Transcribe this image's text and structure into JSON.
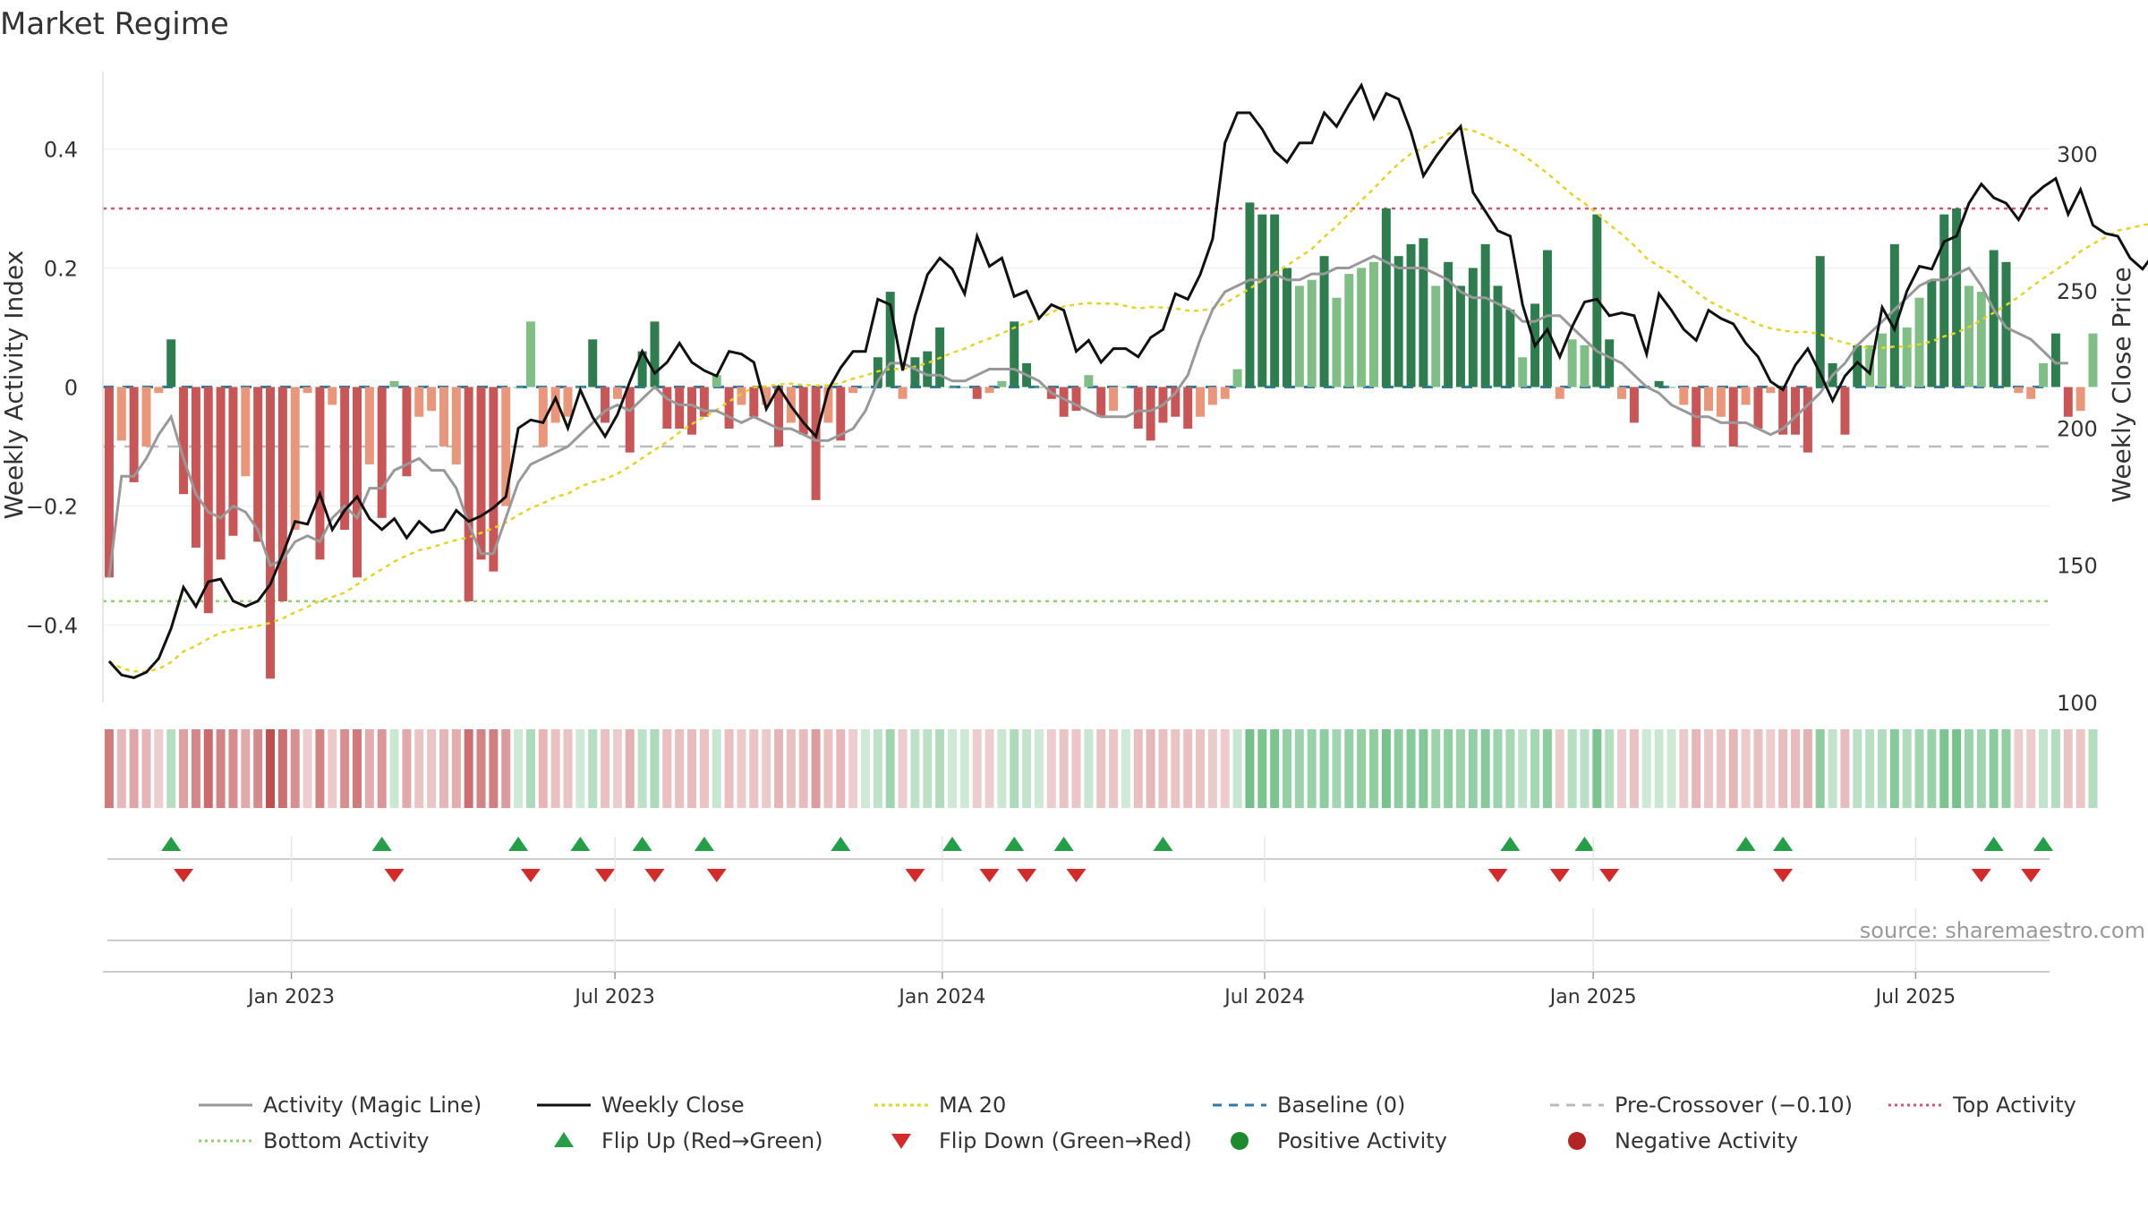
{
  "title": "Market Regime",
  "source_note": "source: sharemaestro.com",
  "colors": {
    "pos_strong": "#2e7d4f",
    "pos_weak": "#7fbf85",
    "neg_strong": "#c85656",
    "neg_weak": "#e9967a",
    "activity_line": "#999999",
    "close_line": "#111111",
    "ma_line": "#e6d41e",
    "baseline": "#2f7aa8",
    "precross": "#bbbbbb",
    "top": "#e0506e",
    "bottom": "#8fd16a",
    "flip_up": "#23a045",
    "flip_down": "#d42a2a",
    "pos_dot": "#1e8a2e",
    "neg_dot": "#b52424"
  },
  "chart_data": {
    "type": "bar",
    "title": "Market Regime",
    "y_left_label": "Weekly Activity Index",
    "y_right_label": "Weekly Close Price",
    "y_left_range": [
      -0.53,
      0.53
    ],
    "y_right_range": [
      100,
      330
    ],
    "y_left_ticks": [
      "0.4",
      "0.2",
      "0",
      "−0.2",
      "−0.4"
    ],
    "y_left_tick_values": [
      0.4,
      0.2,
      0,
      -0.2,
      -0.4
    ],
    "y_right_ticks": [
      "300",
      "250",
      "200",
      "150",
      "100"
    ],
    "y_right_tick_values": [
      300,
      250,
      200,
      150,
      100
    ],
    "x_tick_labels": [
      "Jan 2023",
      "Jul 2023",
      "Jan 2024",
      "Jul 2024",
      "Jan 2025",
      "Jul 2025"
    ],
    "x_tick_weeks": [
      14.7,
      40.8,
      67.2,
      93.2,
      119.7,
      145.7
    ],
    "weeks": 157,
    "levels": {
      "baseline": 0,
      "pre_crossover": -0.1,
      "top": 0.3,
      "bottom": -0.36
    },
    "activity": [
      -0.32,
      -0.09,
      -0.16,
      -0.1,
      -0.01,
      0.08,
      -0.18,
      -0.27,
      -0.38,
      -0.29,
      -0.25,
      -0.15,
      -0.26,
      -0.49,
      -0.36,
      -0.24,
      -0.01,
      -0.29,
      -0.03,
      -0.24,
      -0.32,
      -0.13,
      -0.22,
      0.01,
      -0.15,
      -0.05,
      -0.04,
      -0.1,
      -0.13,
      -0.36,
      -0.29,
      -0.31,
      -0.2,
      0.0,
      0.11,
      -0.1,
      -0.06,
      -0.05,
      0.0,
      0.08,
      -0.06,
      -0.02,
      -0.11,
      0.06,
      0.11,
      -0.07,
      -0.07,
      -0.08,
      -0.05,
      0.02,
      -0.07,
      -0.03,
      -0.05,
      -0.03,
      -0.1,
      -0.06,
      -0.08,
      -0.19,
      -0.06,
      -0.09,
      -0.01,
      0.0,
      0.05,
      0.16,
      -0.02,
      0.05,
      0.06,
      0.1,
      0.0,
      0.0,
      -0.02,
      -0.01,
      0.01,
      0.11,
      0.04,
      0.0,
      -0.02,
      -0.05,
      -0.04,
      0.02,
      -0.05,
      -0.04,
      0.0,
      -0.07,
      -0.09,
      -0.06,
      -0.05,
      -0.07,
      -0.05,
      -0.03,
      -0.02,
      0.03,
      0.31,
      0.29,
      0.29,
      0.2,
      0.17,
      0.18,
      0.22,
      0.15,
      0.19,
      0.2,
      0.21,
      0.3,
      0.22,
      0.24,
      0.25,
      0.17,
      0.21,
      0.17,
      0.2,
      0.24,
      0.17,
      0.13,
      0.05,
      0.14,
      0.23,
      -0.02,
      0.08,
      0.07,
      0.29,
      0.08,
      -0.02,
      -0.06,
      0.0,
      0.01,
      0.0,
      -0.03,
      -0.1,
      -0.04,
      -0.05,
      -0.1,
      -0.03,
      -0.07,
      -0.01,
      -0.08,
      -0.08,
      -0.11,
      0.22,
      0.04,
      -0.08,
      0.07,
      0.07,
      0.09,
      0.24,
      0.1,
      0.15,
      0.18,
      0.29,
      0.3,
      0.17,
      0.16,
      0.23,
      0.21,
      -0.01,
      -0.02,
      0.04,
      0.09,
      -0.05,
      -0.04,
      0.09
    ],
    "magic_line": [
      -0.32,
      -0.15,
      -0.15,
      -0.12,
      -0.08,
      -0.05,
      -0.12,
      -0.18,
      -0.21,
      -0.22,
      -0.2,
      -0.21,
      -0.24,
      -0.3,
      -0.29,
      -0.26,
      -0.25,
      -0.26,
      -0.22,
      -0.2,
      -0.22,
      -0.17,
      -0.17,
      -0.14,
      -0.13,
      -0.12,
      -0.14,
      -0.14,
      -0.17,
      -0.23,
      -0.28,
      -0.28,
      -0.22,
      -0.16,
      -0.13,
      -0.12,
      -0.11,
      -0.1,
      -0.08,
      -0.06,
      -0.04,
      -0.03,
      -0.04,
      -0.02,
      0.0,
      -0.02,
      -0.03,
      -0.03,
      -0.04,
      -0.04,
      -0.05,
      -0.06,
      -0.05,
      -0.06,
      -0.07,
      -0.07,
      -0.08,
      -0.09,
      -0.09,
      -0.08,
      -0.07,
      -0.04,
      0.01,
      0.04,
      0.04,
      0.03,
      0.02,
      0.02,
      0.01,
      0.01,
      0.02,
      0.03,
      0.03,
      0.03,
      0.02,
      0.01,
      -0.01,
      -0.02,
      -0.03,
      -0.04,
      -0.05,
      -0.05,
      -0.05,
      -0.04,
      -0.04,
      -0.03,
      -0.01,
      0.02,
      0.08,
      0.13,
      0.16,
      0.17,
      0.18,
      0.18,
      0.19,
      0.18,
      0.18,
      0.19,
      0.19,
      0.2,
      0.2,
      0.21,
      0.22,
      0.21,
      0.2,
      0.2,
      0.2,
      0.19,
      0.18,
      0.16,
      0.15,
      0.15,
      0.14,
      0.13,
      0.11,
      0.11,
      0.12,
      0.12,
      0.1,
      0.08,
      0.06,
      0.05,
      0.04,
      0.02,
      0.0,
      -0.01,
      -0.03,
      -0.04,
      -0.05,
      -0.05,
      -0.06,
      -0.06,
      -0.06,
      -0.07,
      -0.08,
      -0.07,
      -0.05,
      -0.03,
      -0.01,
      0.02,
      0.04,
      0.07,
      0.09,
      0.11,
      0.13,
      0.15,
      0.17,
      0.18,
      0.18,
      0.19,
      0.2,
      0.17,
      0.13,
      0.1,
      0.09,
      0.08,
      0.06,
      0.04,
      0.04
    ],
    "weekly_close": [
      115,
      110,
      109,
      111,
      116,
      127,
      142,
      135,
      144,
      145,
      137,
      135,
      137,
      143,
      154,
      166,
      165,
      176,
      163,
      170,
      175,
      167,
      163,
      167,
      160,
      166,
      162,
      163,
      170,
      166,
      168,
      171,
      175,
      200,
      203,
      202,
      211,
      200,
      214,
      204,
      197,
      205,
      217,
      228,
      220,
      224,
      231,
      224,
      221,
      219,
      228,
      227,
      224,
      207,
      215,
      208,
      202,
      197,
      214,
      222,
      228,
      228,
      247,
      245,
      221,
      241,
      256,
      262,
      258,
      249,
      270,
      259,
      262,
      248,
      250,
      240,
      245,
      243,
      228,
      232,
      224,
      229,
      229,
      226,
      233,
      236,
      249,
      247,
      256,
      269,
      304,
      315,
      315,
      309,
      301,
      297,
      304,
      304,
      315,
      310,
      318,
      325,
      313,
      322,
      320,
      308,
      292,
      299,
      305,
      310,
      286,
      279,
      272,
      270,
      245,
      230,
      236,
      226,
      237,
      246,
      247,
      241,
      242,
      241,
      227,
      249,
      243,
      236,
      232,
      243,
      240,
      238,
      231,
      226,
      217,
      214,
      223,
      229,
      220,
      210,
      219,
      224,
      220,
      244,
      236,
      250,
      259,
      258,
      268,
      270,
      282,
      289,
      284,
      282,
      276,
      284,
      288,
      291,
      278,
      287,
      274,
      271,
      270,
      262,
      258,
      264,
      260,
      262,
      264
    ]
  },
  "flips": {
    "up_weeks": [
      5,
      22,
      33,
      38,
      43,
      48,
      59,
      68,
      73,
      77,
      85,
      113,
      119,
      132,
      135,
      152,
      156
    ],
    "down_weeks": [
      6,
      23,
      34,
      40,
      44,
      49,
      65,
      71,
      74,
      78,
      112,
      117,
      121,
      135,
      151,
      155
    ]
  },
  "legend": [
    {
      "label": "Activity (Magic Line)",
      "kind": "line",
      "color_key": "activity_line",
      "dash": ""
    },
    {
      "label": "Weekly Close",
      "kind": "line",
      "color_key": "close_line",
      "dash": ""
    },
    {
      "label": "MA 20",
      "kind": "line",
      "color_key": "ma_line",
      "dash": "4,4"
    },
    {
      "label": "Baseline (0)",
      "kind": "line",
      "color_key": "baseline",
      "dash": "10,8"
    },
    {
      "label": "Pre-Crossover (−0.10)",
      "kind": "line",
      "color_key": "precross",
      "dash": "10,8"
    },
    {
      "label": "Top Activity",
      "kind": "line",
      "color_key": "top",
      "dash": "3,4"
    },
    {
      "label": "Bottom Activity",
      "kind": "line",
      "color_key": "bottom",
      "dash": "3,4"
    },
    {
      "label": "Flip Up (Red→Green)",
      "kind": "tri-up",
      "color_key": "flip_up",
      "dash": ""
    },
    {
      "label": "Flip Down (Green→Red)",
      "kind": "tri-down",
      "color_key": "flip_down",
      "dash": ""
    },
    {
      "label": "Positive Activity",
      "kind": "dot",
      "color_key": "pos_dot",
      "dash": ""
    },
    {
      "label": "Negative Activity",
      "kind": "dot",
      "color_key": "neg_dot",
      "dash": ""
    }
  ]
}
